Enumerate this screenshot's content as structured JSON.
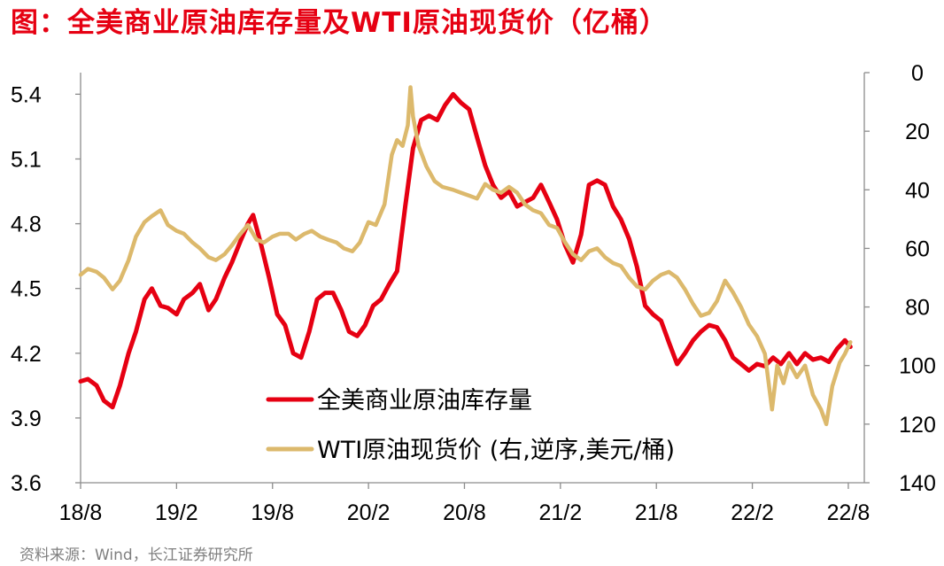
{
  "title": "图：全美商业原油库存量及WTI原油现货价（亿桶）",
  "source": "资料来源：Wind，长江证券研究所",
  "colors": {
    "title": "#e60012",
    "inventory": "#e60012",
    "wti": "#dcb96c",
    "source": "#7f7f7f"
  },
  "chart_data": {
    "type": "line",
    "title": "全美商业原油库存量及WTI原油现货价（亿桶）",
    "x_tick_labels": [
      "18/8",
      "19/2",
      "19/8",
      "20/2",
      "20/8",
      "21/2",
      "21/8",
      "22/2",
      "22/8"
    ],
    "xlim": [
      "2018-08",
      "2022-09"
    ],
    "y_left": {
      "label": "",
      "lim": [
        3.6,
        5.5
      ],
      "ticks": [
        "3.6",
        "3.9",
        "4.2",
        "4.5",
        "4.8",
        "5.1",
        "5.4"
      ]
    },
    "y_right": {
      "label": "",
      "lim": [
        0,
        140
      ],
      "inverted": true,
      "ticks": [
        "0",
        "20",
        "40",
        "60",
        "80",
        "100",
        "120",
        "140"
      ]
    },
    "legend": {
      "placement": "center-bottom",
      "entries": [
        "全美商业原油库存量",
        "WTI原油现货价 (右,逆序,美元/桶)"
      ]
    },
    "grid": false,
    "series": [
      {
        "name": "全美商业原油库存量",
        "axis": "left",
        "points": [
          [
            "2018-08-01",
            4.07
          ],
          [
            "2018-08-15",
            4.08
          ],
          [
            "2018-09-01",
            4.05
          ],
          [
            "2018-09-15",
            3.98
          ],
          [
            "2018-10-01",
            3.95
          ],
          [
            "2018-10-15",
            4.05
          ],
          [
            "2018-11-01",
            4.2
          ],
          [
            "2018-11-15",
            4.3
          ],
          [
            "2018-12-01",
            4.45
          ],
          [
            "2018-12-15",
            4.5
          ],
          [
            "2019-01-01",
            4.42
          ],
          [
            "2019-01-15",
            4.41
          ],
          [
            "2019-02-01",
            4.38
          ],
          [
            "2019-02-15",
            4.45
          ],
          [
            "2019-03-01",
            4.48
          ],
          [
            "2019-03-15",
            4.52
          ],
          [
            "2019-04-01",
            4.4
          ],
          [
            "2019-04-15",
            4.45
          ],
          [
            "2019-05-01",
            4.55
          ],
          [
            "2019-05-15",
            4.62
          ],
          [
            "2019-06-01",
            4.72
          ],
          [
            "2019-06-15",
            4.8
          ],
          [
            "2019-06-25",
            4.84
          ],
          [
            "2019-07-10",
            4.7
          ],
          [
            "2019-07-25",
            4.55
          ],
          [
            "2019-08-10",
            4.38
          ],
          [
            "2019-08-25",
            4.33
          ],
          [
            "2019-09-10",
            4.2
          ],
          [
            "2019-09-25",
            4.18
          ],
          [
            "2019-10-10",
            4.3
          ],
          [
            "2019-10-25",
            4.45
          ],
          [
            "2019-11-10",
            4.48
          ],
          [
            "2019-11-25",
            4.48
          ],
          [
            "2019-12-10",
            4.4
          ],
          [
            "2019-12-25",
            4.3
          ],
          [
            "2020-01-10",
            4.28
          ],
          [
            "2020-01-25",
            4.33
          ],
          [
            "2020-02-10",
            4.42
          ],
          [
            "2020-02-25",
            4.45
          ],
          [
            "2020-03-10",
            4.52
          ],
          [
            "2020-03-25",
            4.58
          ],
          [
            "2020-04-10",
            4.88
          ],
          [
            "2020-04-25",
            5.15
          ],
          [
            "2020-05-10",
            5.28
          ],
          [
            "2020-05-25",
            5.3
          ],
          [
            "2020-06-10",
            5.28
          ],
          [
            "2020-06-25",
            5.35
          ],
          [
            "2020-07-10",
            5.4
          ],
          [
            "2020-07-25",
            5.36
          ],
          [
            "2020-08-10",
            5.33
          ],
          [
            "2020-08-25",
            5.2
          ],
          [
            "2020-09-10",
            5.07
          ],
          [
            "2020-09-25",
            4.98
          ],
          [
            "2020-10-10",
            4.92
          ],
          [
            "2020-10-25",
            4.95
          ],
          [
            "2020-11-10",
            4.88
          ],
          [
            "2020-11-25",
            4.9
          ],
          [
            "2020-12-10",
            4.92
          ],
          [
            "2020-12-25",
            4.98
          ],
          [
            "2021-01-10",
            4.9
          ],
          [
            "2021-01-25",
            4.82
          ],
          [
            "2021-02-10",
            4.7
          ],
          [
            "2021-02-25",
            4.62
          ],
          [
            "2021-03-10",
            4.75
          ],
          [
            "2021-03-25",
            4.98
          ],
          [
            "2021-04-10",
            5.0
          ],
          [
            "2021-04-25",
            4.98
          ],
          [
            "2021-05-10",
            4.88
          ],
          [
            "2021-05-25",
            4.82
          ],
          [
            "2021-06-10",
            4.73
          ],
          [
            "2021-06-25",
            4.6
          ],
          [
            "2021-07-10",
            4.42
          ],
          [
            "2021-07-25",
            4.38
          ],
          [
            "2021-08-10",
            4.35
          ],
          [
            "2021-08-25",
            4.25
          ],
          [
            "2021-09-10",
            4.15
          ],
          [
            "2021-09-25",
            4.2
          ],
          [
            "2021-10-10",
            4.26
          ],
          [
            "2021-10-25",
            4.3
          ],
          [
            "2021-11-10",
            4.33
          ],
          [
            "2021-11-25",
            4.32
          ],
          [
            "2021-12-10",
            4.26
          ],
          [
            "2021-12-25",
            4.18
          ],
          [
            "2022-01-10",
            4.15
          ],
          [
            "2022-01-25",
            4.12
          ],
          [
            "2022-02-10",
            4.15
          ],
          [
            "2022-02-25",
            4.14
          ],
          [
            "2022-03-10",
            4.18
          ],
          [
            "2022-03-25",
            4.15
          ],
          [
            "2022-04-10",
            4.2
          ],
          [
            "2022-04-25",
            4.15
          ],
          [
            "2022-05-10",
            4.2
          ],
          [
            "2022-05-25",
            4.17
          ],
          [
            "2022-06-10",
            4.18
          ],
          [
            "2022-06-25",
            4.16
          ],
          [
            "2022-07-10",
            4.22
          ],
          [
            "2022-07-25",
            4.26
          ],
          [
            "2022-08-05",
            4.23
          ]
        ]
      },
      {
        "name": "WTI原油现货价 (右,逆序,美元/桶)",
        "axis": "right",
        "points": [
          [
            "2018-08-01",
            69
          ],
          [
            "2018-08-15",
            67
          ],
          [
            "2018-09-01",
            68
          ],
          [
            "2018-09-15",
            70
          ],
          [
            "2018-10-01",
            74
          ],
          [
            "2018-10-15",
            71
          ],
          [
            "2018-11-01",
            64
          ],
          [
            "2018-11-15",
            56
          ],
          [
            "2018-12-01",
            51
          ],
          [
            "2018-12-15",
            49
          ],
          [
            "2019-01-01",
            47
          ],
          [
            "2019-01-15",
            52
          ],
          [
            "2019-02-01",
            54
          ],
          [
            "2019-02-15",
            55
          ],
          [
            "2019-03-01",
            58
          ],
          [
            "2019-03-15",
            60
          ],
          [
            "2019-04-01",
            63
          ],
          [
            "2019-04-15",
            64
          ],
          [
            "2019-05-01",
            62
          ],
          [
            "2019-05-15",
            59
          ],
          [
            "2019-06-01",
            55
          ],
          [
            "2019-06-15",
            52
          ],
          [
            "2019-07-01",
            57
          ],
          [
            "2019-07-15",
            58
          ],
          [
            "2019-08-01",
            56
          ],
          [
            "2019-08-15",
            55
          ],
          [
            "2019-09-01",
            55
          ],
          [
            "2019-09-15",
            57
          ],
          [
            "2019-10-01",
            55
          ],
          [
            "2019-10-15",
            54
          ],
          [
            "2019-11-01",
            56
          ],
          [
            "2019-11-15",
            57
          ],
          [
            "2019-12-01",
            58
          ],
          [
            "2019-12-15",
            60
          ],
          [
            "2020-01-01",
            61
          ],
          [
            "2020-01-15",
            58
          ],
          [
            "2020-02-01",
            51
          ],
          [
            "2020-02-15",
            52
          ],
          [
            "2020-03-01",
            45
          ],
          [
            "2020-03-15",
            28
          ],
          [
            "2020-03-25",
            23
          ],
          [
            "2020-04-05",
            25
          ],
          [
            "2020-04-15",
            18
          ],
          [
            "2020-04-20",
            5
          ],
          [
            "2020-04-25",
            15
          ],
          [
            "2020-05-05",
            25
          ],
          [
            "2020-05-20",
            32
          ],
          [
            "2020-06-05",
            37
          ],
          [
            "2020-06-20",
            39
          ],
          [
            "2020-07-10",
            40
          ],
          [
            "2020-07-25",
            41
          ],
          [
            "2020-08-10",
            42
          ],
          [
            "2020-08-25",
            43
          ],
          [
            "2020-09-10",
            38
          ],
          [
            "2020-09-25",
            40
          ],
          [
            "2020-10-10",
            41
          ],
          [
            "2020-10-25",
            39
          ],
          [
            "2020-11-10",
            41
          ],
          [
            "2020-11-25",
            45
          ],
          [
            "2020-12-10",
            47
          ],
          [
            "2020-12-25",
            48
          ],
          [
            "2021-01-10",
            52
          ],
          [
            "2021-01-25",
            53
          ],
          [
            "2021-02-10",
            58
          ],
          [
            "2021-02-25",
            62
          ],
          [
            "2021-03-10",
            64
          ],
          [
            "2021-03-25",
            61
          ],
          [
            "2021-04-10",
            60
          ],
          [
            "2021-04-25",
            63
          ],
          [
            "2021-05-10",
            65
          ],
          [
            "2021-05-25",
            66
          ],
          [
            "2021-06-10",
            70
          ],
          [
            "2021-06-25",
            73
          ],
          [
            "2021-07-10",
            74
          ],
          [
            "2021-07-25",
            71
          ],
          [
            "2021-08-10",
            69
          ],
          [
            "2021-08-25",
            68
          ],
          [
            "2021-09-10",
            70
          ],
          [
            "2021-09-25",
            74
          ],
          [
            "2021-10-10",
            79
          ],
          [
            "2021-10-25",
            83
          ],
          [
            "2021-11-10",
            82
          ],
          [
            "2021-11-25",
            78
          ],
          [
            "2021-12-10",
            71
          ],
          [
            "2021-12-25",
            75
          ],
          [
            "2022-01-10",
            80
          ],
          [
            "2022-01-25",
            86
          ],
          [
            "2022-02-10",
            90
          ],
          [
            "2022-02-25",
            96
          ],
          [
            "2022-03-08",
            115
          ],
          [
            "2022-03-18",
            100
          ],
          [
            "2022-03-30",
            106
          ],
          [
            "2022-04-10",
            99
          ],
          [
            "2022-04-25",
            104
          ],
          [
            "2022-05-10",
            100
          ],
          [
            "2022-05-25",
            110
          ],
          [
            "2022-06-10",
            115
          ],
          [
            "2022-06-20",
            120
          ],
          [
            "2022-07-01",
            107
          ],
          [
            "2022-07-15",
            99
          ],
          [
            "2022-07-25",
            96
          ],
          [
            "2022-08-05",
            92
          ]
        ]
      }
    ]
  }
}
